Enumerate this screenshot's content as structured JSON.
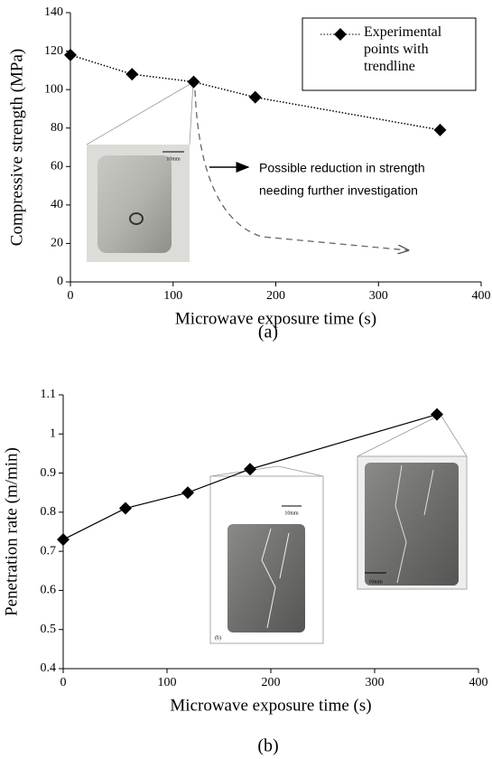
{
  "chart_data": [
    {
      "type": "line",
      "caption": "(a)",
      "x_label": "Microwave exposure time (s)",
      "y_label": "Compressive strength (MPa)",
      "x": [
        0,
        60,
        120,
        180,
        360
      ],
      "series": [
        {
          "name": "Experimental points with trendline",
          "color": "#000000",
          "values": [
            118,
            108,
            104,
            96,
            79
          ],
          "line_style": "dotted"
        }
      ],
      "xlim": [
        0,
        400
      ],
      "xticks": [
        0,
        100,
        200,
        300,
        400
      ],
      "ylim": [
        0,
        140
      ],
      "yticks": [
        0,
        20,
        40,
        60,
        80,
        100,
        120,
        140
      ],
      "grid": false,
      "legend": "upper right",
      "annotation": [
        "Possible reduction in strength",
        "needing further investigation"
      ],
      "inset_labels": [
        "10mm"
      ]
    },
    {
      "type": "line",
      "caption": "(b)",
      "x_label": "Microwave exposure time (s)",
      "y_label": "Penetration rate (m/min)",
      "x": [
        0,
        60,
        120,
        180,
        360
      ],
      "series": [
        {
          "color": "#000000",
          "values": [
            0.73,
            0.81,
            0.85,
            0.91,
            1.05
          ],
          "line_style": "solid"
        }
      ],
      "xlim": [
        0,
        400
      ],
      "xticks": [
        0,
        100,
        200,
        300,
        400
      ],
      "ylim": [
        0.4,
        1.1
      ],
      "yticks": [
        0.4,
        0.5,
        0.6,
        0.7,
        0.8,
        0.9,
        1,
        1.1
      ],
      "grid": false,
      "inset_labels": [
        "10mm",
        "(b)",
        "10mm"
      ]
    }
  ]
}
